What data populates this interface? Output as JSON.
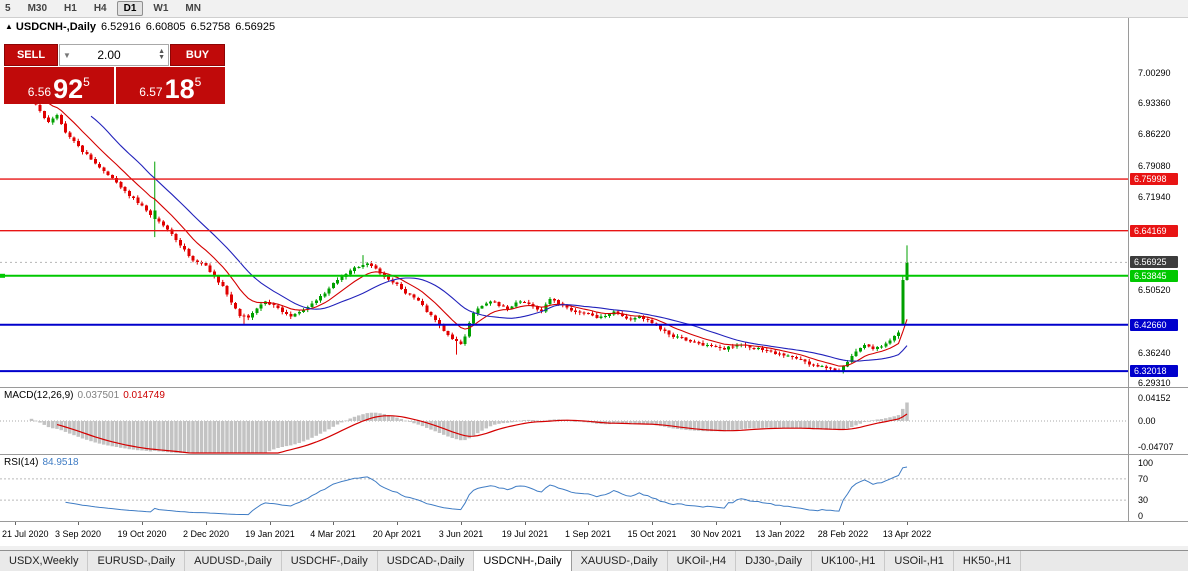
{
  "toolbar": {
    "items": [
      {
        "label": "5",
        "active": false
      },
      {
        "label": "M30",
        "active": false
      },
      {
        "label": "H1",
        "active": false
      },
      {
        "label": "H4",
        "active": false
      },
      {
        "label": "D1",
        "active": true
      },
      {
        "label": "W1",
        "active": false
      },
      {
        "label": "MN",
        "active": false
      }
    ]
  },
  "chart": {
    "title": {
      "marker": "▲",
      "symbol": "USDCNH-,Daily",
      "open": "6.52916",
      "high": "6.60805",
      "low": "6.52758",
      "close": "6.56925"
    },
    "trade_panel": {
      "sell_label": "SELL",
      "buy_label": "BUY",
      "volume": "2.00",
      "sell_price": {
        "prefix": "6.56",
        "big": "92",
        "sup": "5"
      },
      "buy_price": {
        "prefix": "6.57",
        "big": "18",
        "sup": "5"
      }
    }
  },
  "chart_data": {
    "type": "candlestick",
    "title": "USDCNH-,Daily",
    "n_bars": 213,
    "price_anchors": [
      [
        0,
        6.958
      ],
      [
        2,
        6.975
      ],
      [
        4,
        6.993
      ],
      [
        6,
        6.952
      ],
      [
        8,
        6.915
      ],
      [
        10,
        6.89
      ],
      [
        12,
        6.905
      ],
      [
        14,
        6.868
      ],
      [
        17,
        6.836
      ],
      [
        20,
        6.806
      ],
      [
        23,
        6.78
      ],
      [
        26,
        6.752
      ],
      [
        29,
        6.722
      ],
      [
        32,
        6.698
      ],
      [
        34,
        6.673
      ],
      [
        36,
        6.664
      ],
      [
        38,
        6.646
      ],
      [
        40,
        6.622
      ],
      [
        42,
        6.597
      ],
      [
        44,
        6.576
      ],
      [
        47,
        6.561
      ],
      [
        49,
        6.54
      ],
      [
        51,
        6.515
      ],
      [
        53,
        6.478
      ],
      [
        55,
        6.449
      ],
      [
        57,
        6.443
      ],
      [
        59,
        6.462
      ],
      [
        61,
        6.478
      ],
      [
        63,
        6.471
      ],
      [
        65,
        6.457
      ],
      [
        67,
        6.446
      ],
      [
        69,
        6.455
      ],
      [
        71,
        6.468
      ],
      [
        73,
        6.481
      ],
      [
        75,
        6.498
      ],
      [
        77,
        6.52
      ],
      [
        79,
        6.538
      ],
      [
        81,
        6.552
      ],
      [
        83,
        6.561
      ],
      [
        85,
        6.566
      ],
      [
        87,
        6.552
      ],
      [
        89,
        6.539
      ],
      [
        91,
        6.524
      ],
      [
        93,
        6.508
      ],
      [
        95,
        6.494
      ],
      [
        97,
        6.482
      ],
      [
        99,
        6.457
      ],
      [
        101,
        6.436
      ],
      [
        103,
        6.412
      ],
      [
        105,
        6.391
      ],
      [
        107,
        6.379
      ],
      [
        108,
        6.399
      ],
      [
        109,
        6.43
      ],
      [
        110,
        6.452
      ],
      [
        112,
        6.468
      ],
      [
        114,
        6.478
      ],
      [
        116,
        6.469
      ],
      [
        118,
        6.463
      ],
      [
        120,
        6.477
      ],
      [
        122,
        6.479
      ],
      [
        124,
        6.469
      ],
      [
        126,
        6.461
      ],
      [
        128,
        6.487
      ],
      [
        130,
        6.477
      ],
      [
        132,
        6.465
      ],
      [
        134,
        6.457
      ],
      [
        137,
        6.451
      ],
      [
        139,
        6.439
      ],
      [
        141,
        6.448
      ],
      [
        143,
        6.456
      ],
      [
        145,
        6.447
      ],
      [
        147,
        6.439
      ],
      [
        149,
        6.446
      ],
      [
        152,
        6.431
      ],
      [
        154,
        6.419
      ],
      [
        156,
        6.404
      ],
      [
        158,
        6.397
      ],
      [
        160,
        6.391
      ],
      [
        162,
        6.387
      ],
      [
        164,
        6.383
      ],
      [
        167,
        6.377
      ],
      [
        169,
        6.369
      ],
      [
        171,
        6.377
      ],
      [
        173,
        6.383
      ],
      [
        175,
        6.375
      ],
      [
        177,
        6.369
      ],
      [
        179,
        6.365
      ],
      [
        182,
        6.361
      ],
      [
        184,
        6.357
      ],
      [
        186,
        6.351
      ],
      [
        188,
        6.343
      ],
      [
        190,
        6.335
      ],
      [
        192,
        6.329
      ],
      [
        194,
        6.324
      ],
      [
        196,
        6.321
      ],
      [
        198,
        6.341
      ],
      [
        200,
        6.367
      ],
      [
        202,
        6.381
      ],
      [
        204,
        6.371
      ],
      [
        206,
        6.377
      ],
      [
        208,
        6.387
      ],
      [
        210,
        6.409
      ],
      [
        211,
        6.445
      ],
      [
        212,
        6.569
      ]
    ],
    "overrides": [
      {
        "i": 35,
        "o": 6.668,
        "h": 6.8,
        "l": 6.627,
        "c": 6.688
      },
      {
        "i": 56,
        "l": 6.428
      },
      {
        "i": 84,
        "h": 6.586
      },
      {
        "i": 106,
        "l": 6.358
      },
      {
        "i": 196,
        "l": 6.318
      },
      {
        "i": 211,
        "o": 6.428,
        "c": 6.529,
        "h": 6.538,
        "l": 6.425
      },
      {
        "i": 212,
        "o": 6.52916,
        "h": 6.60805,
        "l": 6.52758,
        "c": 6.56925
      }
    ],
    "levels": [
      {
        "value": 6.75998,
        "style": "red"
      },
      {
        "value": 6.64169,
        "style": "red"
      },
      {
        "value": 6.53845,
        "style": "green"
      },
      {
        "value": 6.4266,
        "style": "blue"
      },
      {
        "value": 6.32018,
        "style": "blue"
      }
    ],
    "current_price": 6.56925,
    "price_ticks": [
      {
        "label": "7.00290",
        "value": 7.0029,
        "style": "plain"
      },
      {
        "label": "6.93360",
        "value": 6.9336,
        "style": "plain"
      },
      {
        "label": "6.86220",
        "value": 6.8622,
        "style": "plain"
      },
      {
        "label": "6.79080",
        "value": 6.7908,
        "style": "plain"
      },
      {
        "label": "6.75998",
        "value": 6.75998,
        "style": "red"
      },
      {
        "label": "6.71940",
        "value": 6.7194,
        "style": "plain"
      },
      {
        "label": "6.64169",
        "value": 6.64169,
        "style": "red"
      },
      {
        "label": "6.56925",
        "value": 6.56925,
        "style": "current"
      },
      {
        "label": "6.53845",
        "value": 6.53845,
        "style": "green"
      },
      {
        "label": "6.50520",
        "value": 6.5052,
        "style": "plain"
      },
      {
        "label": "6.42660",
        "value": 6.4266,
        "style": "blue"
      },
      {
        "label": "6.36240",
        "value": 6.3624,
        "style": "plain"
      },
      {
        "label": "6.32018",
        "value": 6.32018,
        "style": "blue"
      },
      {
        "label": "6.29310",
        "value": 6.2931,
        "style": "plain"
      }
    ],
    "date_labels": [
      "21 Jul 2020",
      "3 Sep 2020",
      "19 Oct 2020",
      "2 Dec 2020",
      "19 Jan 2021",
      "4 Mar 2021",
      "20 Apr 2021",
      "3 Jun 2021",
      "19 Jul 2021",
      "1 Sep 2021",
      "15 Oct 2021",
      "30 Nov 2021",
      "13 Jan 2022",
      "28 Feb 2022",
      "13 Apr 2022"
    ],
    "date_label_bars": [
      2,
      17,
      32,
      47,
      62,
      77,
      92,
      107,
      122,
      137,
      152,
      167,
      182,
      197,
      212
    ],
    "indicators": {
      "macd": {
        "label": "MACD(12,26,9)",
        "value_main": "0.037501",
        "value_signal": "0.014749",
        "axis": [
          {
            "label": "0.04152",
            "value": 0.04152
          },
          {
            "label": "0.00",
            "value": 0
          },
          {
            "label": "-0.04707",
            "value": -0.04707
          }
        ]
      },
      "rsi": {
        "label": "RSI(14)",
        "value": "84.9518",
        "axis": [
          {
            "label": "100",
            "value": 100
          },
          {
            "label": "70",
            "value": 70
          },
          {
            "label": "30",
            "value": 30
          },
          {
            "label": "0",
            "value": 0
          }
        ],
        "guide_levels": [
          70,
          30
        ]
      }
    },
    "colors": {
      "up": "#00A000",
      "down": "#E00000",
      "ma_fast": "#D40000",
      "ma_slow": "#2222BB",
      "macd_hist": "#C3C3C3",
      "macd_signal": "#D40000",
      "rsi": "#3F7CC4",
      "level_red": "#E81414",
      "level_green": "#00C800",
      "level_blue": "#0000CC",
      "current_badge": "#3C3C3C",
      "trade_red": "#C00A0A"
    }
  },
  "tabs": {
    "items": [
      {
        "label": "USDX,Weekly",
        "active": false
      },
      {
        "label": "EURUSD-,Daily",
        "active": false
      },
      {
        "label": "AUDUSD-,Daily",
        "active": false
      },
      {
        "label": "USDCHF-,Daily",
        "active": false
      },
      {
        "label": "USDCAD-,Daily",
        "active": false
      },
      {
        "label": "USDCNH-,Daily",
        "active": true
      },
      {
        "label": "XAUUSD-,Daily",
        "active": false
      },
      {
        "label": "UKOil-,H4",
        "active": false
      },
      {
        "label": "DJ30-,Daily",
        "active": false
      },
      {
        "label": "UK100-,H1",
        "active": false
      },
      {
        "label": "USOil-,H1",
        "active": false
      },
      {
        "label": "HK50-,H1",
        "active": false
      }
    ]
  }
}
